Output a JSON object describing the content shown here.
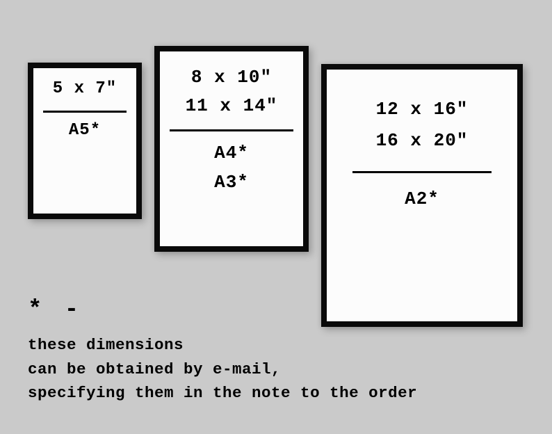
{
  "background_color": "#cacaca",
  "frame_bg": "#fcfcfc",
  "frame_border": "#0a0a0a",
  "text_color": "#000000",
  "font_family": "Courier New",
  "frames": {
    "small": {
      "top": [
        "5 x 7\""
      ],
      "bottom": [
        "A5*"
      ]
    },
    "medium": {
      "top": [
        "8 x 10\"",
        "11 x 14\""
      ],
      "bottom": [
        "A4*",
        "A3*"
      ]
    },
    "large": {
      "top": [
        "12 x 16\"",
        "16 x 20\""
      ],
      "bottom": [
        "A2*"
      ]
    }
  },
  "footnote": {
    "symbol": "* -",
    "line1": "these dimensions",
    "line2": "can be obtained by e-mail,",
    "line3": "specifying them in the note to the order"
  }
}
